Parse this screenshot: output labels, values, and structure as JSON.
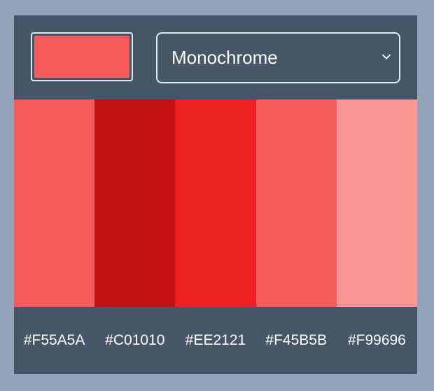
{
  "picker": {
    "selected_color": "#F55A5A"
  },
  "mode_select": {
    "value": "Monochrome",
    "icon": "chevron-down-icon"
  },
  "palette": {
    "swatches": [
      {
        "hex": "#F55A5A",
        "color": "#F55A5A"
      },
      {
        "hex": "#C01010",
        "color": "#C01010"
      },
      {
        "hex": "#EE2121",
        "color": "#EE2121"
      },
      {
        "hex": "#F45B5B",
        "color": "#F45B5B"
      },
      {
        "hex": "#F99696",
        "color": "#F99696"
      }
    ]
  },
  "colors": {
    "page_background": "#94A3B8",
    "panel_background": "#475569",
    "border": "#E2E8F0",
    "text": "#FFFFFF"
  }
}
